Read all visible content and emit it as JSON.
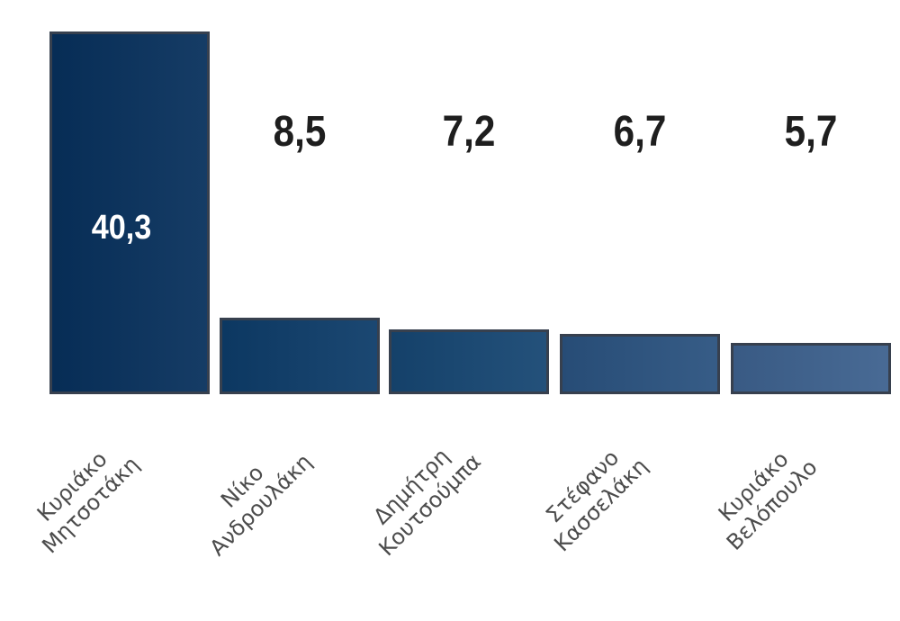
{
  "chart_data": {
    "type": "bar",
    "title": "",
    "xlabel": "",
    "ylabel": "",
    "categories": [
      "Κυριάκο Μητσοτάκη",
      "Νίκο Ανδρουλάκη",
      "Δημήτρη Κουτσούμπα",
      "Στέφανο Κασσελάκη",
      "Κυριάκο Βελόπουλο"
    ],
    "category_lines": [
      [
        "Κυριάκο",
        "Μητσοτάκη"
      ],
      [
        "Νίκο",
        "Ανδρουλάκη"
      ],
      [
        "Δημήτρη",
        "Κουτσούμπα"
      ],
      [
        "Στέφανο",
        "Κασσελάκη"
      ],
      [
        "Κυριάκο",
        "Βελόπουλο"
      ]
    ],
    "values": [
      40.3,
      8.5,
      7.2,
      6.7,
      5.7
    ],
    "value_labels": [
      "40,3",
      "8,5",
      "7,2",
      "6,7",
      "5,7"
    ],
    "ylim": [
      0,
      43.8
    ],
    "grid": false,
    "legend": "none",
    "axis_lines": "none",
    "bar_colors": [
      "#07305c",
      "#0d3c69",
      "#164672",
      "#2a527f",
      "#3d618e"
    ],
    "bar_border_color": "#37404e",
    "value_label_color": "#1e1e1e",
    "inside_value_label_color": "#ffffff",
    "category_label_color": "#4c4c4c",
    "background_color": "#ffffff"
  }
}
